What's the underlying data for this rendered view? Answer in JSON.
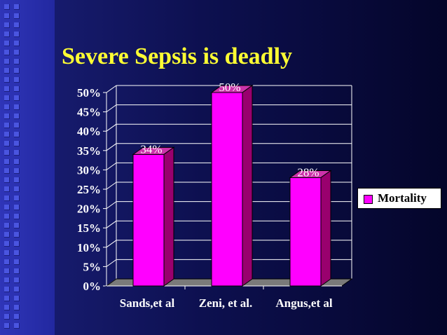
{
  "slide": {
    "title": "Severe Sepsis is deadly"
  },
  "colors": {
    "bar": "#ff00ff",
    "bar_top": "#cc33aa",
    "bar_side": "#99006e",
    "floor": "#7a7a7a",
    "title": "#ffff33"
  },
  "chart_data": {
    "type": "bar",
    "categories": [
      "Sands,et al",
      "Zeni, et al.",
      "Angus,et al"
    ],
    "series": [
      {
        "name": "Mortality",
        "values": [
          34,
          50,
          28
        ]
      }
    ],
    "data_labels": [
      "34%",
      "50%",
      "28%"
    ],
    "y_ticks": [
      "0%",
      "5%",
      "10%",
      "15%",
      "20%",
      "25%",
      "30%",
      "35%",
      "40%",
      "45%",
      "50%"
    ],
    "ylim": [
      0,
      50
    ],
    "grid": true,
    "legend": "right"
  }
}
